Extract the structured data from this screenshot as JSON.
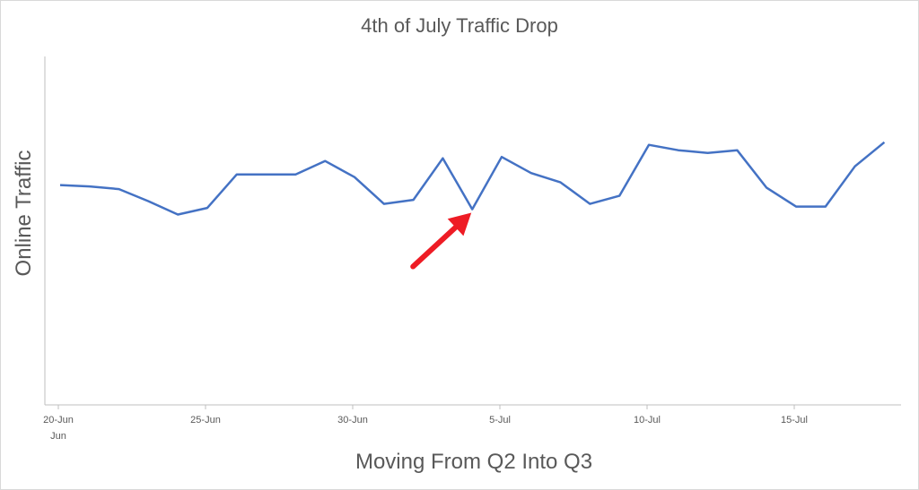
{
  "chart_data": {
    "type": "line",
    "title": "4th of July Traffic Drop",
    "xlabel": "Moving From Q2 Into Q3",
    "ylabel": "Online Traffic",
    "x_tick_labels": [
      "20-Jun",
      "25-Jun",
      "30-Jun",
      "5-Jul",
      "10-Jul",
      "15-Jul"
    ],
    "x_tick_secondary": "Jun",
    "x": [
      "20-Jun",
      "21-Jun",
      "22-Jun",
      "23-Jun",
      "24-Jun",
      "25-Jun",
      "26-Jun",
      "27-Jun",
      "28-Jun",
      "29-Jun",
      "30-Jun",
      "1-Jul",
      "2-Jul",
      "3-Jul",
      "4-Jul",
      "5-Jul",
      "6-Jul",
      "7-Jul",
      "8-Jul",
      "9-Jul",
      "10-Jul",
      "11-Jul",
      "12-Jul",
      "13-Jul",
      "14-Jul",
      "15-Jul",
      "16-Jul",
      "17-Jul",
      "18-Jul"
    ],
    "series": [
      {
        "values": [
          82,
          81.5,
          80.5,
          76,
          71,
          73.5,
          86,
          86,
          86,
          91,
          85,
          75,
          76.5,
          92,
          73,
          92.5,
          86.5,
          83,
          75,
          78,
          97,
          95,
          94,
          95,
          81,
          74,
          74,
          89,
          98
        ]
      }
    ],
    "ylim": [
      0,
      130
    ],
    "y_ticks_visible": false,
    "grid": false,
    "line_color": "#4472c4",
    "annotation": {
      "type": "arrow",
      "target_x": "4-Jul",
      "color": "#ee1c25"
    }
  }
}
